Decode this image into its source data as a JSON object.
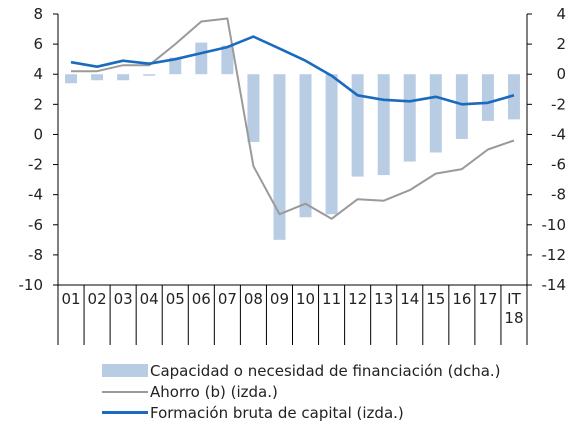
{
  "chart_data": {
    "type": "bar+line",
    "categories": [
      "01",
      "02",
      "03",
      "04",
      "05",
      "06",
      "07",
      "08",
      "09",
      "10",
      "11",
      "12",
      "13",
      "14",
      "15",
      "16",
      "17",
      "IT 18"
    ],
    "y_left": {
      "lim": [
        -10,
        8
      ],
      "ticks": [
        8,
        6,
        4,
        2,
        0,
        -2,
        -4,
        -6,
        -8,
        -10
      ]
    },
    "y_right": {
      "lim": [
        -14,
        4
      ],
      "ticks": [
        4,
        2,
        0,
        -2,
        -4,
        -6,
        -8,
        -10,
        -12,
        -14
      ]
    },
    "series": [
      {
        "name": "Capacidad o necesidad de financiación (dcha.)",
        "type": "bar",
        "axis": "right",
        "color": "#b8cde4",
        "values": [
          -0.6,
          -0.4,
          -0.4,
          -0.1,
          1.1,
          2.1,
          1.9,
          -4.5,
          -11.0,
          -9.5,
          -9.3,
          -6.8,
          -6.7,
          -5.8,
          -5.2,
          -4.3,
          -3.1,
          -3.0
        ]
      },
      {
        "name": "Ahorro (b) (izda.)",
        "type": "line",
        "axis": "left",
        "color": "#9a9a9a",
        "values": [
          4.2,
          4.2,
          4.6,
          4.6,
          6.0,
          7.5,
          7.7,
          -2.1,
          -5.3,
          -4.6,
          -5.6,
          -4.3,
          -4.4,
          -3.7,
          -2.6,
          -2.3,
          -1.0,
          -0.4
        ]
      },
      {
        "name": "Formación bruta de capital (izda.)",
        "type": "line",
        "axis": "left",
        "color": "#1a6bbf",
        "values": [
          4.8,
          4.5,
          4.9,
          4.7,
          5.0,
          5.4,
          5.8,
          6.5,
          5.7,
          4.9,
          3.9,
          2.6,
          2.3,
          2.2,
          2.5,
          2.0,
          2.1,
          2.6
        ]
      }
    ]
  }
}
